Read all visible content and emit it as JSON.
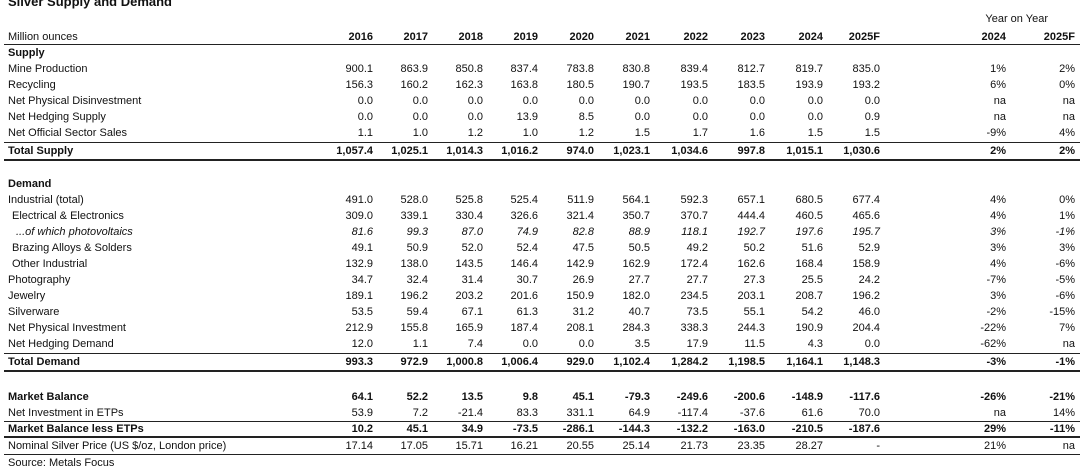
{
  "title": "Silver Supply and Demand",
  "header": {
    "label": "Million ounces",
    "years": [
      "2016",
      "2017",
      "2018",
      "2019",
      "2020",
      "2021",
      "2022",
      "2023",
      "2024",
      "2025F"
    ],
    "yoy_label": "Year on Year",
    "yoy": [
      "2024",
      "2025F"
    ]
  },
  "sections": [
    {
      "heading": "Supply",
      "rows": [
        {
          "label": "Mine Production",
          "values": [
            "900.1",
            "863.9",
            "850.8",
            "837.4",
            "783.8",
            "830.8",
            "839.4",
            "812.7",
            "819.7",
            "835.0"
          ],
          "yoy": [
            "1%",
            "2%"
          ]
        },
        {
          "label": "Recycling",
          "values": [
            "156.3",
            "160.2",
            "162.3",
            "163.8",
            "180.5",
            "190.7",
            "193.5",
            "183.5",
            "193.9",
            "193.2"
          ],
          "yoy": [
            "6%",
            "0%"
          ]
        },
        {
          "label": "Net Physical Disinvestment",
          "values": [
            "0.0",
            "0.0",
            "0.0",
            "0.0",
            "0.0",
            "0.0",
            "0.0",
            "0.0",
            "0.0",
            "0.0"
          ],
          "yoy": [
            "na",
            "na"
          ]
        },
        {
          "label": "Net Hedging Supply",
          "values": [
            "0.0",
            "0.0",
            "0.0",
            "13.9",
            "8.5",
            "0.0",
            "0.0",
            "0.0",
            "0.0",
            "0.9"
          ],
          "yoy": [
            "na",
            "na"
          ]
        },
        {
          "label": "Net Official Sector Sales",
          "values": [
            "1.1",
            "1.0",
            "1.2",
            "1.0",
            "1.2",
            "1.5",
            "1.7",
            "1.6",
            "1.5",
            "1.5"
          ],
          "yoy": [
            "-9%",
            "4%"
          ]
        }
      ],
      "total": {
        "label": "Total Supply",
        "values": [
          "1,057.4",
          "1,025.1",
          "1,014.3",
          "1,016.2",
          "974.0",
          "1,023.1",
          "1,034.6",
          "997.8",
          "1,015.1",
          "1,030.6"
        ],
        "yoy": [
          "2%",
          "2%"
        ]
      }
    },
    {
      "heading": "Demand",
      "rows": [
        {
          "label": "Industrial (total)",
          "values": [
            "491.0",
            "528.0",
            "525.8",
            "525.4",
            "511.9",
            "564.1",
            "592.3",
            "657.1",
            "680.5",
            "677.4"
          ],
          "yoy": [
            "4%",
            "0%"
          ],
          "components": [
            {
              "label": "Electrical & Electronics",
              "values": [
                "309.0",
                "339.1",
                "330.4",
                "326.6",
                "321.4",
                "350.7",
                "370.7",
                "444.4",
                "460.5",
                "465.6"
              ],
              "yoy": [
                "4%",
                "1%"
              ],
              "components": [
                {
                  "label": "...of which photovoltaics",
                  "values": [
                    "81.6",
                    "99.3",
                    "87.0",
                    "74.9",
                    "82.8",
                    "88.9",
                    "118.1",
                    "192.7",
                    "197.6",
                    "195.7"
                  ],
                  "yoy": [
                    "3%",
                    "-1%"
                  ]
                }
              ]
            },
            {
              "label": "Brazing Alloys & Solders",
              "values": [
                "49.1",
                "50.9",
                "52.0",
                "52.4",
                "47.5",
                "50.5",
                "49.2",
                "50.2",
                "51.6",
                "52.9"
              ],
              "yoy": [
                "3%",
                "3%"
              ]
            },
            {
              "label": "Other Industrial",
              "values": [
                "132.9",
                "138.0",
                "143.5",
                "146.4",
                "142.9",
                "162.9",
                "172.4",
                "162.6",
                "168.4",
                "158.9"
              ],
              "yoy": [
                "4%",
                "-6%"
              ]
            }
          ]
        },
        {
          "label": "Photography",
          "values": [
            "34.7",
            "32.4",
            "31.4",
            "30.7",
            "26.9",
            "27.7",
            "27.7",
            "27.3",
            "25.5",
            "24.2"
          ],
          "yoy": [
            "-7%",
            "-5%"
          ]
        },
        {
          "label": "Jewelry",
          "values": [
            "189.1",
            "196.2",
            "203.2",
            "201.6",
            "150.9",
            "182.0",
            "234.5",
            "203.1",
            "208.7",
            "196.2"
          ],
          "yoy": [
            "3%",
            "-6%"
          ]
        },
        {
          "label": "Silverware",
          "values": [
            "53.5",
            "59.4",
            "67.1",
            "61.3",
            "31.2",
            "40.7",
            "73.5",
            "55.1",
            "54.2",
            "46.0"
          ],
          "yoy": [
            "-2%",
            "-15%"
          ]
        },
        {
          "label": "Net Physical Investment",
          "values": [
            "212.9",
            "155.8",
            "165.9",
            "187.4",
            "208.1",
            "284.3",
            "338.3",
            "244.3",
            "190.9",
            "204.4"
          ],
          "yoy": [
            "-22%",
            "7%"
          ]
        },
        {
          "label": "Net Hedging Demand",
          "values": [
            "12.0",
            "1.1",
            "7.4",
            "0.0",
            "0.0",
            "3.5",
            "17.9",
            "11.5",
            "4.3",
            "0.0"
          ],
          "yoy": [
            "-62%",
            "na"
          ]
        }
      ],
      "total": {
        "label": "Total Demand",
        "values": [
          "993.3",
          "972.9",
          "1,000.8",
          "1,006.4",
          "929.0",
          "1,102.4",
          "1,284.2",
          "1,198.5",
          "1,164.1",
          "1,148.3"
        ],
        "yoy": [
          "-3%",
          "-1%"
        ]
      }
    }
  ],
  "balance": [
    {
      "label": "Market Balance",
      "values": [
        "64.1",
        "52.2",
        "13.5",
        "9.8",
        "45.1",
        "-79.3",
        "-249.6",
        "-200.6",
        "-148.9",
        "-117.6"
      ],
      "yoy": [
        "-26%",
        "-21%"
      ]
    },
    {
      "label": "Net Investment in ETPs",
      "values": [
        "53.9",
        "7.2",
        "-21.4",
        "83.3",
        "331.1",
        "64.9",
        "-117.4",
        "-37.6",
        "61.6",
        "70.0"
      ],
      "yoy": [
        "na",
        "14%"
      ]
    },
    {
      "label": "Market Balance less ETPs",
      "values": [
        "10.2",
        "45.1",
        "34.9",
        "-73.5",
        "-286.1",
        "-144.3",
        "-132.2",
        "-163.0",
        "-210.5",
        "-187.6"
      ],
      "yoy": [
        "29%",
        "-11%"
      ]
    },
    {
      "label": "Nominal Silver Price (US $/oz, London price)",
      "values": [
        "17.14",
        "17.05",
        "15.71",
        "16.21",
        "20.55",
        "25.14",
        "21.73",
        "23.35",
        "28.27",
        "-"
      ],
      "yoy": [
        "21%",
        "na"
      ]
    }
  ],
  "source": "Source: Metals Focus"
}
